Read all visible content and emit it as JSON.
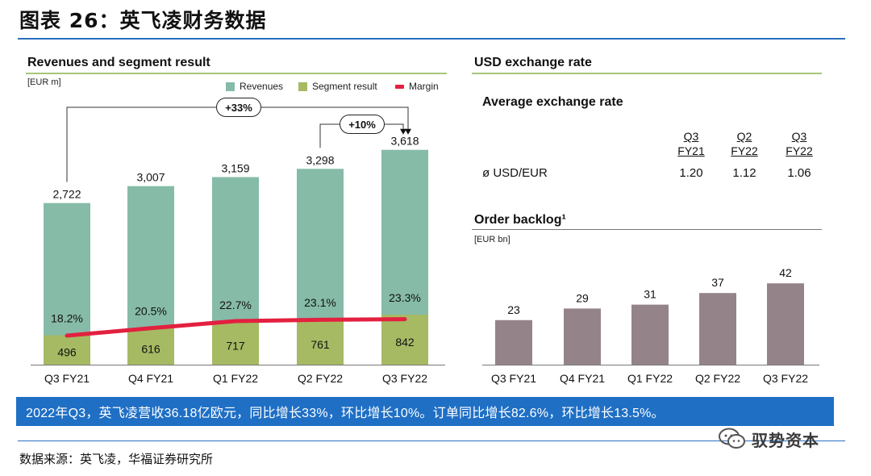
{
  "figure_title": "图表 26：英飞凌财务数据",
  "left_panel": {
    "title": "Revenues and segment result",
    "unit": "[EUR m]",
    "callout_yoy": "+33%",
    "callout_qoq": "+10%"
  },
  "right_panel": {
    "title": "USD exchange rate",
    "fx_subtitle": "Average exchange rate",
    "fx_columns": [
      {
        "top": "Q3",
        "bottom": "FY21"
      },
      {
        "top": "Q2",
        "bottom": "FY22"
      },
      {
        "top": "Q3",
        "bottom": "FY22"
      }
    ],
    "fx_row_label": "ø USD/EUR",
    "fx_values": [
      "1.20",
      "1.12",
      "1.06"
    ],
    "backlog_title": "Order backlog¹",
    "backlog_unit": "[EUR bn]"
  },
  "highlight_text": "2022年Q3，英飞凌营收36.18亿欧元，同比增长33%，环比增长10%。订单同比增长82.6%，环比增长13.5%。",
  "source_text": "数据来源：英飞凌，华福证券研究所",
  "watermark_text": "驭势资本",
  "colors": {
    "revenue": "#86bba8",
    "segment": "#a6ba63",
    "margin": "#e3203f",
    "backlog": "#94848a",
    "accent_blue": "#1f6fc5",
    "rule_green": "#a9c47a"
  },
  "chart_data": [
    {
      "type": "bar",
      "title": "Revenues and segment result",
      "ylabel": "[EUR m]",
      "categories": [
        "Q3 FY21",
        "Q4 FY21",
        "Q1 FY22",
        "Q2 FY22",
        "Q3 FY22"
      ],
      "series": [
        {
          "name": "Revenues",
          "values": [
            2722,
            3007,
            3159,
            3298,
            3618
          ],
          "labels": [
            "2,722",
            "3,007",
            "3,159",
            "3,298",
            "3,618"
          ]
        },
        {
          "name": "Segment result",
          "values": [
            496,
            616,
            717,
            761,
            842
          ],
          "labels": [
            "496",
            "616",
            "717",
            "761",
            "842"
          ]
        },
        {
          "name": "Margin",
          "type": "line",
          "values": [
            18.2,
            20.5,
            22.7,
            23.1,
            23.3
          ],
          "labels": [
            "18.2%",
            "20.5%",
            "22.7%",
            "23.1%",
            "23.3%"
          ]
        }
      ],
      "legend": "top-right",
      "grid": false
    },
    {
      "type": "bar",
      "title": "Order backlog¹",
      "ylabel": "[EUR bn]",
      "categories": [
        "Q3 FY21",
        "Q4 FY21",
        "Q1 FY22",
        "Q2 FY22",
        "Q3 FY22"
      ],
      "values": [
        23,
        29,
        31,
        37,
        42
      ],
      "grid": false
    }
  ]
}
